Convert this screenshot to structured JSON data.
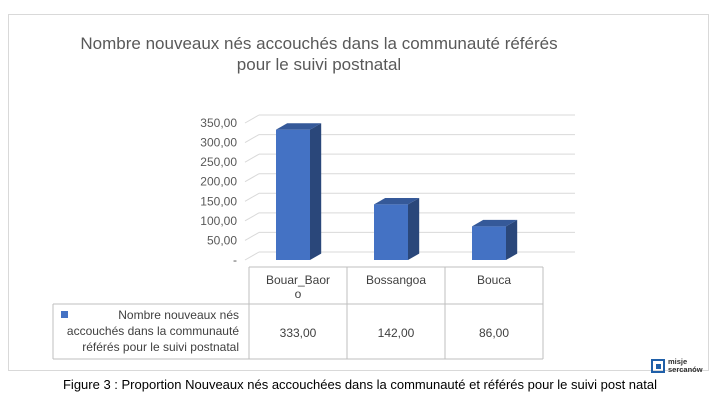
{
  "chart_data": {
    "type": "bar",
    "title_line1": "Nombre nouveaux nés accouchés dans la communauté référés",
    "title_line2": "pour le suivi postnatal",
    "categories": [
      "Bouar_Baoro",
      "Bossangoa",
      "Bouca"
    ],
    "category_labels": [
      [
        "Bouar_Baor",
        "o"
      ],
      [
        "Bossangoa"
      ],
      [
        "Bouca"
      ]
    ],
    "series": [
      {
        "name": "Nombre nouveaux nés accouchés dans la communauté référés pour le suivi postnatal",
        "name_lines": [
          "Nombre nouveaux nés",
          "accouchés dans la communauté",
          "référés pour le suivi postnatal"
        ],
        "values": [
          333,
          142,
          86
        ],
        "value_labels": [
          "333,00",
          "142,00",
          "86,00"
        ],
        "color": "#4472c4"
      }
    ],
    "ylim": [
      0,
      350
    ],
    "y_ticks": [
      0,
      50,
      100,
      150,
      200,
      250,
      300,
      350
    ],
    "y_tick_labels": [
      "-",
      "50,00",
      "100,00",
      "150,00",
      "200,00",
      "250,00",
      "300,00",
      "350,00"
    ],
    "grid": true,
    "legend": "data-table"
  },
  "caption": "Figure 3 : Proportion Nouveaux nés accouchées dans la communauté et référés pour le suivi post natal",
  "logo": {
    "line1": "misje",
    "line2": "sercanów"
  }
}
